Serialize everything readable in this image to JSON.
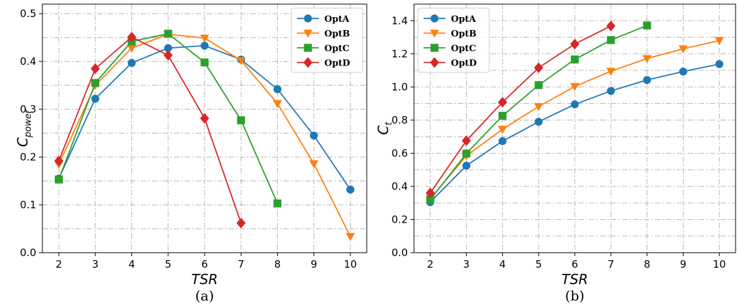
{
  "chart_data": [
    {
      "type": "line",
      "caption": "(a)",
      "xlabel": "TSR",
      "ylabel": "C",
      "ylabel_sub": "power",
      "xlim": [
        1.55,
        10.45
      ],
      "ylim": [
        0.0,
        0.52
      ],
      "xticks": [
        2,
        3,
        4,
        5,
        6,
        7,
        8,
        9,
        10
      ],
      "yticks": [
        0.0,
        0.1,
        0.2,
        0.3,
        0.4,
        0.5
      ],
      "ytick_labels": [
        "0.0",
        "0.1",
        "0.2",
        "0.3",
        "0.4",
        "0.5"
      ],
      "ygrid": [
        0.05,
        0.1,
        0.15,
        0.2,
        0.25,
        0.3,
        0.35,
        0.4,
        0.45,
        0.5
      ],
      "legend_position": "top-right",
      "series": [
        {
          "name": "OptA",
          "color": "#1f77b4",
          "marker": "circle",
          "x": [
            2,
            3,
            4,
            5,
            6,
            7,
            8,
            9,
            10
          ],
          "y": [
            0.155,
            0.322,
            0.397,
            0.428,
            0.433,
            0.404,
            0.342,
            0.245,
            0.132
          ]
        },
        {
          "name": "OptB",
          "color": "#ff7f0e",
          "marker": "triangle-down",
          "x": [
            2,
            3,
            4,
            5,
            6,
            7,
            8,
            9,
            10
          ],
          "y": [
            0.185,
            0.35,
            0.428,
            0.457,
            0.449,
            0.402,
            0.312,
            0.186,
            0.034
          ]
        },
        {
          "name": "OptC",
          "color": "#2ca02c",
          "marker": "square",
          "x": [
            2,
            3,
            4,
            5,
            6,
            7,
            8
          ],
          "y": [
            0.153,
            0.355,
            0.442,
            0.458,
            0.398,
            0.277,
            0.103
          ]
        },
        {
          "name": "OptD",
          "color": "#d62728",
          "marker": "diamond",
          "x": [
            2,
            3,
            4,
            5,
            6,
            7
          ],
          "y": [
            0.192,
            0.385,
            0.451,
            0.413,
            0.281,
            0.062
          ]
        }
      ]
    },
    {
      "type": "line",
      "caption": "(b)",
      "xlabel": "TSR",
      "ylabel": "C",
      "ylabel_sub": "t",
      "xlim": [
        1.55,
        10.45
      ],
      "ylim": [
        0.0,
        1.5
      ],
      "xticks": [
        2,
        3,
        4,
        5,
        6,
        7,
        8,
        9,
        10
      ],
      "yticks": [
        0.0,
        0.2,
        0.4,
        0.6,
        0.8,
        1.0,
        1.2,
        1.4
      ],
      "ytick_labels": [
        "0.0",
        "0.2",
        "0.4",
        "0.6",
        "0.8",
        "1.0",
        "1.2",
        "1.4"
      ],
      "ygrid": [
        0.1,
        0.2,
        0.3,
        0.4,
        0.5,
        0.6,
        0.7,
        0.8,
        0.9,
        1.0,
        1.1,
        1.2,
        1.3,
        1.4
      ],
      "legend_position": "top-left",
      "series": [
        {
          "name": "OptA",
          "color": "#1f77b4",
          "marker": "circle",
          "x": [
            2,
            3,
            4,
            5,
            6,
            7,
            8,
            9,
            10
          ],
          "y": [
            0.305,
            0.525,
            0.673,
            0.79,
            0.895,
            0.976,
            1.042,
            1.093,
            1.138
          ]
        },
        {
          "name": "OptB",
          "color": "#ff7f0e",
          "marker": "triangle-down",
          "x": [
            2,
            3,
            4,
            5,
            6,
            7,
            8,
            9,
            10
          ],
          "y": [
            0.325,
            0.585,
            0.745,
            0.882,
            1.003,
            1.095,
            1.172,
            1.23,
            1.28
          ]
        },
        {
          "name": "OptC",
          "color": "#2ca02c",
          "marker": "square",
          "x": [
            2,
            3,
            4,
            5,
            6,
            7,
            8
          ],
          "y": [
            0.32,
            0.598,
            0.826,
            1.011,
            1.166,
            1.283,
            1.371
          ]
        },
        {
          "name": "OptD",
          "color": "#d62728",
          "marker": "diamond",
          "x": [
            2,
            3,
            4,
            5,
            6,
            7
          ],
          "y": [
            0.36,
            0.676,
            0.908,
            1.116,
            1.259,
            1.368
          ]
        }
      ]
    }
  ]
}
